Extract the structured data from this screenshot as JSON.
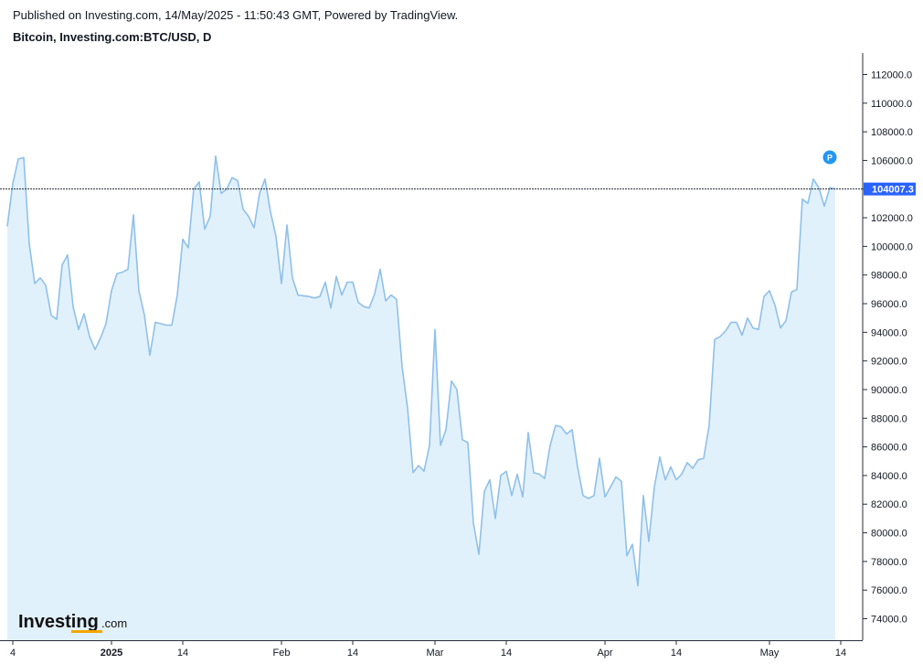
{
  "header": {
    "published": "Published on Investing.com, 14/May/2025 - 11:50:43 GMT, Powered by TradingView.",
    "symbol": "Bitcoin, Investing.com:BTC/USD, D"
  },
  "logo": {
    "main": "Investing",
    "suffix": ".com"
  },
  "marker": {
    "label": "P"
  },
  "colors": {
    "line": "#8fc0ea",
    "fill": "#e1f1fb",
    "last_label_bg": "#2962ff"
  },
  "chart_data": {
    "type": "area",
    "title": "Bitcoin, Investing.com:BTC/USD, D",
    "ylim": [
      72500,
      113500
    ],
    "grid": false,
    "y_ticks": [
      74000,
      76000,
      78000,
      80000,
      82000,
      84000,
      86000,
      88000,
      90000,
      92000,
      94000,
      96000,
      98000,
      100000,
      102000,
      104000,
      106000,
      108000,
      110000,
      112000
    ],
    "y_tick_labels": [
      "74000.0",
      "76000.0",
      "78000.0",
      "80000.0",
      "82000.0",
      "84000.0",
      "86000.0",
      "88000.0",
      "90000.0",
      "92000.0",
      "94000.0",
      "96000.0",
      "98000.0",
      "100000.0",
      "102000.0",
      "104000.0",
      "106000.0",
      "108000.0",
      "110000.0",
      "112000.0"
    ],
    "x_ticks": [
      {
        "date": "2024-12-14",
        "label": "4"
      },
      {
        "date": "2025-01-01",
        "label": "2025"
      },
      {
        "date": "2025-01-14",
        "label": "14"
      },
      {
        "date": "2025-02-01",
        "label": "Feb"
      },
      {
        "date": "2025-02-14",
        "label": "14"
      },
      {
        "date": "2025-03-01",
        "label": "Mar"
      },
      {
        "date": "2025-03-14",
        "label": "14"
      },
      {
        "date": "2025-04-01",
        "label": "Apr"
      },
      {
        "date": "2025-04-14",
        "label": "14"
      },
      {
        "date": "2025-05-01",
        "label": "May"
      },
      {
        "date": "2025-05-14",
        "label": "14"
      }
    ],
    "last_value": 104007.3,
    "last_value_label": "104007.3",
    "series": [
      {
        "start_date": "2024-12-13",
        "values": [
          101400,
          104400,
          106100,
          106200,
          100200,
          97400,
          97800,
          97300,
          95200,
          94900,
          98700,
          99400,
          95800,
          94200,
          95300,
          93700,
          92800,
          93600,
          94600,
          96900,
          98100,
          98200,
          98400,
          102200,
          96900,
          95200,
          92400,
          94700,
          94600,
          94500,
          94500,
          96600,
          100500,
          99900,
          104000,
          104500,
          101200,
          102100,
          106300,
          103700,
          104000,
          104800,
          104600,
          102600,
          102100,
          101300,
          103700,
          104700,
          102400,
          100700,
          97400,
          101500,
          97800,
          96600,
          96550,
          96500,
          96400,
          96500,
          97500,
          95700,
          97900,
          96600,
          97500,
          97500,
          96100,
          95800,
          95700,
          96700,
          98400,
          96200,
          96600,
          96300,
          91600,
          88700,
          84200,
          84700,
          84300,
          86100,
          94200,
          86100,
          87200,
          90600,
          90000,
          86500,
          86300,
          80700,
          78500,
          82900,
          83700,
          81000,
          84000,
          84300,
          82600,
          84100,
          82500,
          87000,
          84200,
          84100,
          83800,
          86100,
          87500,
          87400,
          86900,
          87200,
          84600,
          82600,
          82400,
          82600,
          85200,
          82500,
          83200,
          83900,
          83600,
          78400,
          79200,
          76300,
          82600,
          79400,
          83200,
          85300,
          83700,
          84600,
          83700,
          84100,
          84900,
          84500,
          85100,
          85200,
          87500,
          93500,
          93700,
          94100,
          94700,
          94700,
          93800,
          95000,
          94300,
          94200,
          96500,
          96900,
          95900,
          94300,
          94800,
          96800,
          97000,
          103300,
          103000,
          104700,
          104100,
          102800,
          104100,
          104007
        ]
      }
    ]
  }
}
